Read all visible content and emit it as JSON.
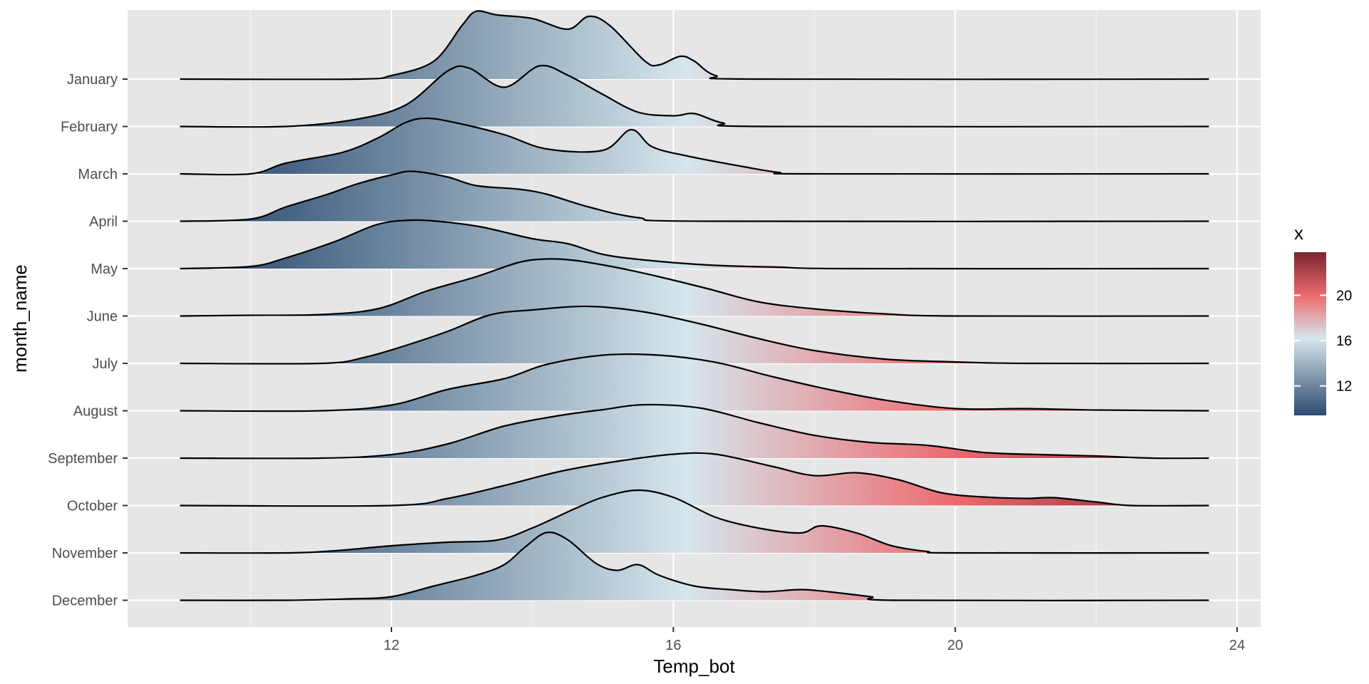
{
  "chart_data": {
    "type": "ridgeline",
    "title": "",
    "xlabel": "Temp_bot",
    "ylabel": "month_name",
    "xlim": [
      7.8,
      24.5
    ],
    "x_ticks": [
      12,
      16,
      20,
      24
    ],
    "x_minor_ticks": [
      10,
      14,
      18,
      22
    ],
    "x_tick_labels": [
      "12",
      "16",
      "20",
      "24"
    ],
    "grid": true,
    "legend": {
      "title": "x",
      "placement": "right",
      "ticks": [
        12,
        16,
        20
      ],
      "tick_labels": [
        "12",
        "16",
        "20"
      ],
      "range": [
        9.4,
        23.8
      ],
      "colors": [
        "#2b4a6f",
        "#d6e6ec",
        "#ec6a6e",
        "#7a2430"
      ]
    },
    "colors": {
      "panel": "#e6e6e6",
      "grid_major": "#ffffff",
      "ridge_line": "#000000",
      "low": "#2b4a6f",
      "mid": "#d6e6ec",
      "high": "#ec6a6e",
      "max": "#7a2430"
    },
    "baseline_range": [
      9.0,
      23.6
    ],
    "series": [
      {
        "name": "January",
        "points": [
          [
            9.0,
            0
          ],
          [
            11.5,
            0
          ],
          [
            12.0,
            0.05
          ],
          [
            12.6,
            0.25
          ],
          [
            13.0,
            0.75
          ],
          [
            13.2,
            0.95
          ],
          [
            13.5,
            0.9
          ],
          [
            14.0,
            0.85
          ],
          [
            14.5,
            0.7
          ],
          [
            14.8,
            0.88
          ],
          [
            15.1,
            0.75
          ],
          [
            15.6,
            0.25
          ],
          [
            15.8,
            0.2
          ],
          [
            16.1,
            0.32
          ],
          [
            16.3,
            0.25
          ],
          [
            16.6,
            0.05
          ],
          [
            17.2,
            0
          ],
          [
            23.6,
            0
          ]
        ]
      },
      {
        "name": "February",
        "points": [
          [
            9.0,
            0
          ],
          [
            10.5,
            0
          ],
          [
            11.5,
            0.1
          ],
          [
            12.2,
            0.3
          ],
          [
            12.8,
            0.78
          ],
          [
            13.1,
            0.82
          ],
          [
            13.6,
            0.55
          ],
          [
            14.1,
            0.85
          ],
          [
            14.5,
            0.72
          ],
          [
            15.0,
            0.45
          ],
          [
            15.5,
            0.2
          ],
          [
            16.0,
            0.15
          ],
          [
            16.3,
            0.18
          ],
          [
            16.7,
            0.05
          ],
          [
            17.3,
            0
          ],
          [
            23.6,
            0
          ]
        ]
      },
      {
        "name": "March",
        "points": [
          [
            9.0,
            0
          ],
          [
            10.0,
            0
          ],
          [
            10.5,
            0.15
          ],
          [
            11.3,
            0.3
          ],
          [
            11.8,
            0.5
          ],
          [
            12.2,
            0.72
          ],
          [
            12.5,
            0.78
          ],
          [
            12.9,
            0.72
          ],
          [
            13.6,
            0.55
          ],
          [
            14.2,
            0.35
          ],
          [
            15.0,
            0.33
          ],
          [
            15.4,
            0.62
          ],
          [
            15.7,
            0.38
          ],
          [
            16.2,
            0.25
          ],
          [
            17.0,
            0.1
          ],
          [
            17.5,
            0.02
          ],
          [
            18.0,
            0
          ],
          [
            23.6,
            0
          ]
        ]
      },
      {
        "name": "April",
        "points": [
          [
            9.0,
            0
          ],
          [
            10.0,
            0.03
          ],
          [
            10.5,
            0.2
          ],
          [
            11.1,
            0.38
          ],
          [
            11.5,
            0.52
          ],
          [
            12.0,
            0.65
          ],
          [
            12.3,
            0.7
          ],
          [
            12.8,
            0.62
          ],
          [
            13.2,
            0.5
          ],
          [
            13.8,
            0.45
          ],
          [
            14.2,
            0.38
          ],
          [
            14.8,
            0.2
          ],
          [
            15.5,
            0.05
          ],
          [
            16.5,
            0
          ],
          [
            23.6,
            0
          ]
        ]
      },
      {
        "name": "May",
        "points": [
          [
            9.0,
            0
          ],
          [
            10.0,
            0.03
          ],
          [
            10.5,
            0.15
          ],
          [
            11.2,
            0.38
          ],
          [
            11.8,
            0.62
          ],
          [
            12.3,
            0.68
          ],
          [
            12.8,
            0.65
          ],
          [
            13.3,
            0.58
          ],
          [
            14.0,
            0.42
          ],
          [
            14.5,
            0.35
          ],
          [
            15.0,
            0.2
          ],
          [
            15.6,
            0.12
          ],
          [
            16.5,
            0.05
          ],
          [
            17.5,
            0.02
          ],
          [
            18.5,
            0
          ],
          [
            23.6,
            0
          ]
        ]
      },
      {
        "name": "June",
        "points": [
          [
            9.0,
            0
          ],
          [
            10.0,
            0.01
          ],
          [
            11.0,
            0.02
          ],
          [
            11.8,
            0.1
          ],
          [
            12.5,
            0.35
          ],
          [
            13.2,
            0.55
          ],
          [
            13.8,
            0.75
          ],
          [
            14.2,
            0.8
          ],
          [
            14.6,
            0.78
          ],
          [
            15.2,
            0.68
          ],
          [
            15.8,
            0.55
          ],
          [
            16.5,
            0.38
          ],
          [
            17.2,
            0.2
          ],
          [
            18.0,
            0.1
          ],
          [
            19.0,
            0.03
          ],
          [
            20.0,
            0
          ],
          [
            23.6,
            0
          ]
        ]
      },
      {
        "name": "July",
        "points": [
          [
            9.0,
            0
          ],
          [
            11.0,
            0
          ],
          [
            11.6,
            0.08
          ],
          [
            12.2,
            0.25
          ],
          [
            12.8,
            0.45
          ],
          [
            13.4,
            0.68
          ],
          [
            14.0,
            0.75
          ],
          [
            14.8,
            0.8
          ],
          [
            15.6,
            0.72
          ],
          [
            16.4,
            0.55
          ],
          [
            17.2,
            0.35
          ],
          [
            18.0,
            0.18
          ],
          [
            19.0,
            0.06
          ],
          [
            20.0,
            0.02
          ],
          [
            21.0,
            0
          ],
          [
            23.6,
            0
          ]
        ]
      },
      {
        "name": "August",
        "points": [
          [
            9.0,
            0
          ],
          [
            11.0,
            0
          ],
          [
            12.0,
            0.08
          ],
          [
            12.8,
            0.3
          ],
          [
            13.6,
            0.45
          ],
          [
            14.2,
            0.65
          ],
          [
            15.0,
            0.78
          ],
          [
            15.8,
            0.78
          ],
          [
            16.6,
            0.68
          ],
          [
            17.4,
            0.48
          ],
          [
            18.2,
            0.3
          ],
          [
            19.0,
            0.15
          ],
          [
            20.0,
            0.03
          ],
          [
            21.0,
            0.03
          ],
          [
            22.0,
            0.01
          ],
          [
            23.6,
            0
          ]
        ]
      },
      {
        "name": "September",
        "points": [
          [
            9.0,
            0
          ],
          [
            11.0,
            0
          ],
          [
            12.0,
            0.05
          ],
          [
            12.8,
            0.2
          ],
          [
            13.6,
            0.45
          ],
          [
            14.4,
            0.6
          ],
          [
            15.0,
            0.68
          ],
          [
            15.6,
            0.75
          ],
          [
            16.4,
            0.7
          ],
          [
            17.2,
            0.5
          ],
          [
            18.0,
            0.32
          ],
          [
            18.8,
            0.22
          ],
          [
            19.6,
            0.18
          ],
          [
            20.4,
            0.08
          ],
          [
            21.2,
            0.05
          ],
          [
            22.0,
            0.03
          ],
          [
            22.8,
            0
          ],
          [
            23.6,
            0
          ]
        ]
      },
      {
        "name": "October",
        "points": [
          [
            9.0,
            0
          ],
          [
            12.0,
            0
          ],
          [
            12.8,
            0.1
          ],
          [
            13.6,
            0.28
          ],
          [
            14.4,
            0.48
          ],
          [
            15.2,
            0.62
          ],
          [
            16.0,
            0.72
          ],
          [
            16.6,
            0.72
          ],
          [
            17.4,
            0.55
          ],
          [
            18.0,
            0.42
          ],
          [
            18.6,
            0.46
          ],
          [
            19.2,
            0.36
          ],
          [
            19.8,
            0.18
          ],
          [
            20.4,
            0.12
          ],
          [
            21.0,
            0.1
          ],
          [
            21.4,
            0.11
          ],
          [
            22.0,
            0.05
          ],
          [
            22.5,
            0
          ],
          [
            23.6,
            0
          ]
        ]
      },
      {
        "name": "November",
        "points": [
          [
            9.0,
            0
          ],
          [
            10.5,
            0
          ],
          [
            11.2,
            0.03
          ],
          [
            12.0,
            0.1
          ],
          [
            12.8,
            0.15
          ],
          [
            13.5,
            0.18
          ],
          [
            14.0,
            0.35
          ],
          [
            14.6,
            0.62
          ],
          [
            15.0,
            0.78
          ],
          [
            15.5,
            0.88
          ],
          [
            16.0,
            0.78
          ],
          [
            16.6,
            0.5
          ],
          [
            17.2,
            0.35
          ],
          [
            17.8,
            0.28
          ],
          [
            18.1,
            0.38
          ],
          [
            18.6,
            0.28
          ],
          [
            19.1,
            0.1
          ],
          [
            19.6,
            0.02
          ],
          [
            20.0,
            0
          ],
          [
            23.6,
            0
          ]
        ]
      },
      {
        "name": "December",
        "points": [
          [
            9.0,
            0
          ],
          [
            10.5,
            0
          ],
          [
            11.4,
            0.02
          ],
          [
            12.0,
            0.05
          ],
          [
            12.6,
            0.2
          ],
          [
            13.2,
            0.35
          ],
          [
            13.6,
            0.5
          ],
          [
            13.9,
            0.75
          ],
          [
            14.2,
            0.95
          ],
          [
            14.5,
            0.85
          ],
          [
            14.9,
            0.52
          ],
          [
            15.2,
            0.42
          ],
          [
            15.5,
            0.5
          ],
          [
            15.8,
            0.35
          ],
          [
            16.3,
            0.2
          ],
          [
            16.8,
            0.15
          ],
          [
            17.3,
            0.12
          ],
          [
            17.8,
            0.15
          ],
          [
            18.2,
            0.12
          ],
          [
            18.8,
            0.05
          ],
          [
            19.2,
            0
          ],
          [
            23.6,
            0
          ]
        ]
      }
    ]
  }
}
